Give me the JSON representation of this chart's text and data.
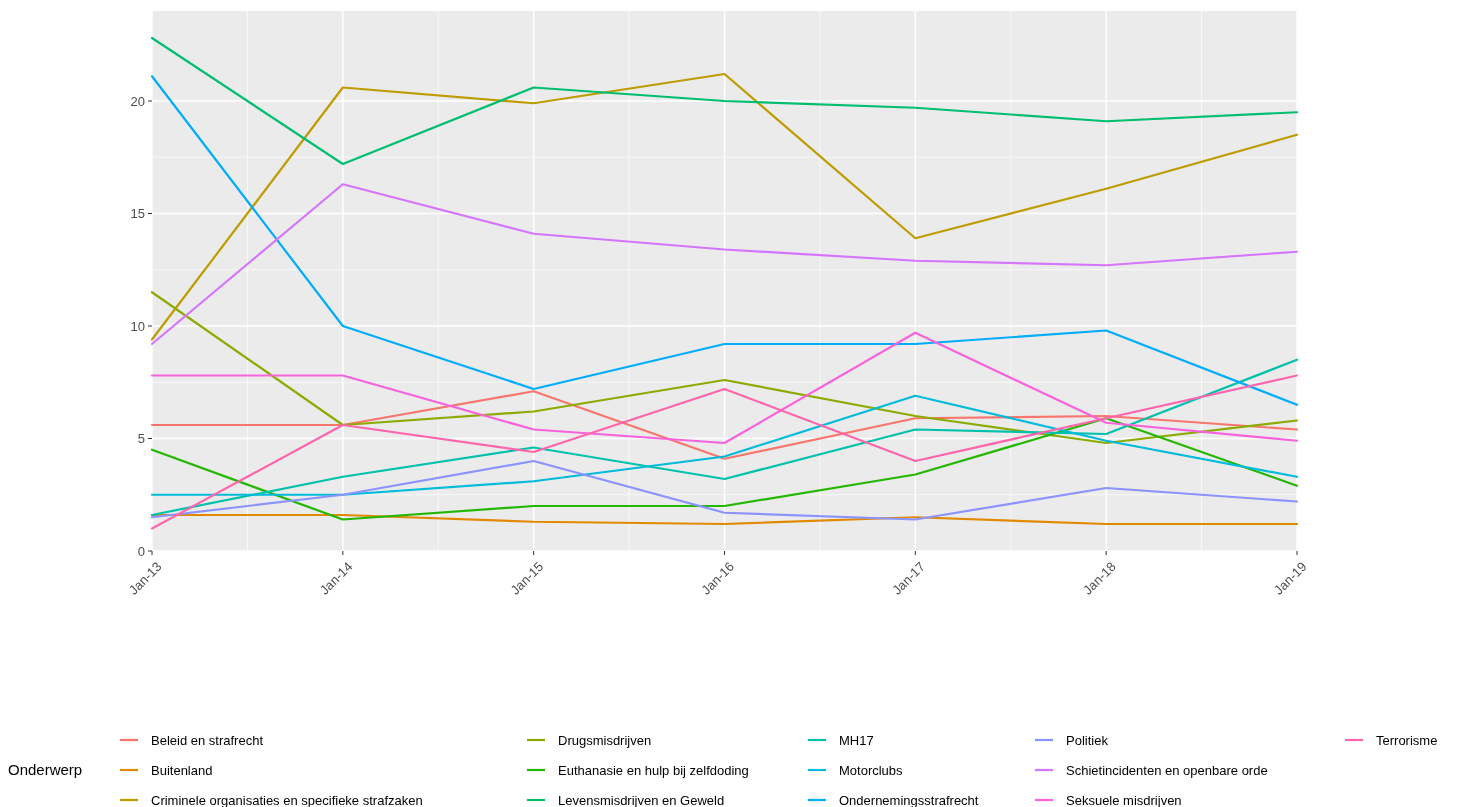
{
  "chart_data": {
    "type": "line",
    "categories": [
      "Jan-13",
      "Jan-14",
      "Jan-15",
      "Jan-16",
      "Jan-17",
      "Jan-18",
      "Jan-19"
    ],
    "ylim": [
      0,
      24
    ],
    "yticks": [
      0,
      5,
      10,
      15,
      20
    ],
    "grid": true,
    "legend": "bottom",
    "legend_title": "Onderwerp",
    "marker": "none",
    "line_style": "solid",
    "series": [
      {
        "name": "Beleid en strafrecht",
        "color": "#f8766d",
        "values": [
          5.6,
          5.6,
          7.1,
          4.1,
          5.9,
          6.0,
          5.4
        ]
      },
      {
        "name": "Buitenland",
        "color": "#e18a00",
        "values": [
          1.6,
          1.6,
          1.3,
          1.2,
          1.5,
          1.2,
          1.2
        ]
      },
      {
        "name": "Criminele organisaties en specifieke strafzaken",
        "color": "#be9c00",
        "values": [
          9.4,
          20.6,
          19.9,
          21.2,
          13.9,
          16.1,
          18.5
        ]
      },
      {
        "name": "Drugsmisdrijven",
        "color": "#8cab00",
        "values": [
          11.5,
          5.6,
          6.2,
          7.6,
          6.0,
          4.8,
          5.8
        ]
      },
      {
        "name": "Euthanasie en hulp bij zelfdoding",
        "color": "#24b700",
        "values": [
          4.5,
          1.4,
          2.0,
          2.0,
          3.4,
          5.9,
          2.9
        ]
      },
      {
        "name": "Levensmisdrijven en Geweld",
        "color": "#00be70",
        "values": [
          22.8,
          17.2,
          20.6,
          20.0,
          19.7,
          19.1,
          19.5
        ]
      },
      {
        "name": "MH17",
        "color": "#00c1ab",
        "values": [
          1.6,
          3.3,
          4.6,
          3.2,
          5.4,
          5.2,
          8.5
        ]
      },
      {
        "name": "Motorclubs",
        "color": "#00bbda",
        "values": [
          2.5,
          2.5,
          3.1,
          4.2,
          6.9,
          4.9,
          3.3
        ]
      },
      {
        "name": "Ondernemingsstrafrecht",
        "color": "#00acfc",
        "values": [
          21.1,
          10.0,
          7.2,
          9.2,
          9.2,
          9.8,
          6.5
        ]
      },
      {
        "name": "Politiek",
        "color": "#8b93ff",
        "values": [
          1.5,
          2.5,
          4.0,
          1.7,
          1.4,
          2.8,
          2.2
        ]
      },
      {
        "name": "Schietincidenten en openbare orde",
        "color": "#d575fe",
        "values": [
          9.2,
          16.3,
          14.1,
          13.4,
          12.9,
          12.7,
          13.3
        ]
      },
      {
        "name": "Seksuele misdrijven",
        "color": "#f962dd",
        "values": [
          7.8,
          7.8,
          5.4,
          4.8,
          9.7,
          5.7,
          4.9
        ]
      },
      {
        "name": "Terrorisme",
        "color": "#ff65ac",
        "values": [
          1.0,
          5.6,
          4.4,
          7.2,
          4.0,
          5.9,
          7.8
        ]
      }
    ]
  }
}
